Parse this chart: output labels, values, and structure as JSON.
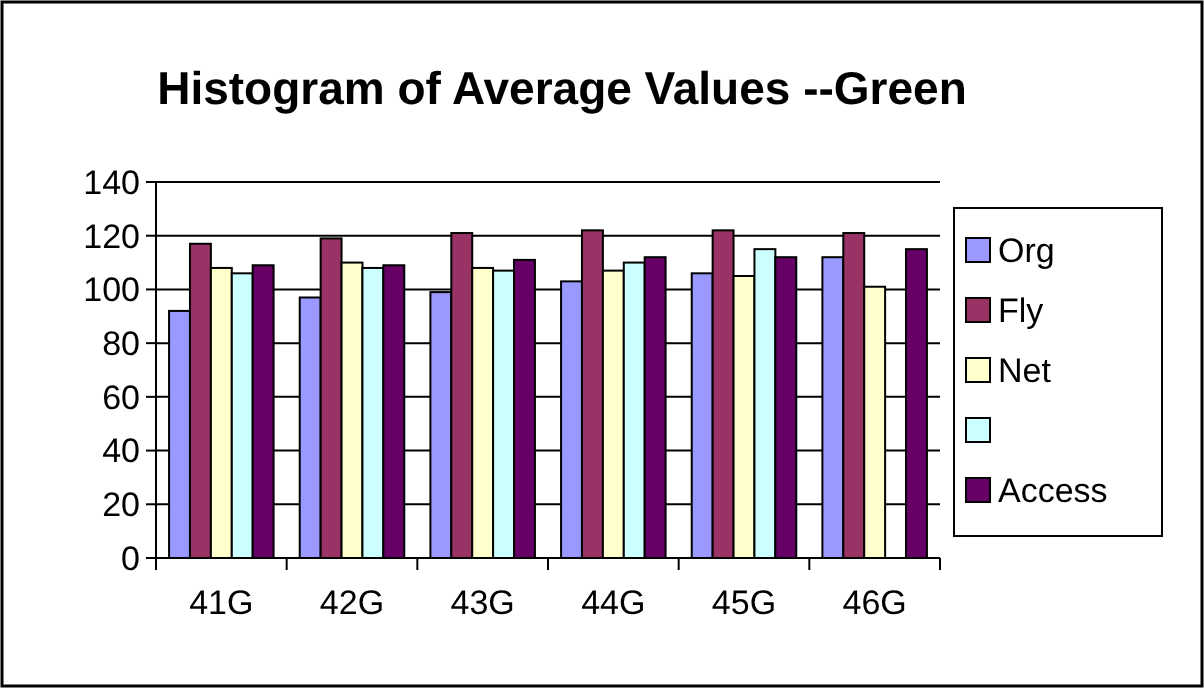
{
  "chart_data": {
    "type": "bar",
    "title": "Histogram of Average Values --Green",
    "categories": [
      "41G",
      "42G",
      "43G",
      "44G",
      "45G",
      "46G"
    ],
    "series": [
      {
        "name": "Org",
        "color": "#9999ff",
        "values": [
          92,
          97,
          99,
          103,
          106,
          112
        ]
      },
      {
        "name": "Fly",
        "color": "#993366",
        "values": [
          117,
          119,
          121,
          122,
          122,
          121
        ]
      },
      {
        "name": "Net",
        "color": "#ffffcc",
        "values": [
          108,
          110,
          108,
          107,
          105,
          101
        ]
      },
      {
        "color": "#ccffff",
        "values": [
          106,
          108,
          107,
          110,
          115,
          null
        ]
      },
      {
        "name": "Access",
        "color": "#660066",
        "values": [
          109,
          109,
          111,
          112,
          112,
          115
        ]
      }
    ],
    "ylim": [
      0,
      140
    ],
    "yticks": [
      0,
      20,
      40,
      60,
      80,
      100,
      120,
      140
    ],
    "grid": "y",
    "legend": "right"
  }
}
